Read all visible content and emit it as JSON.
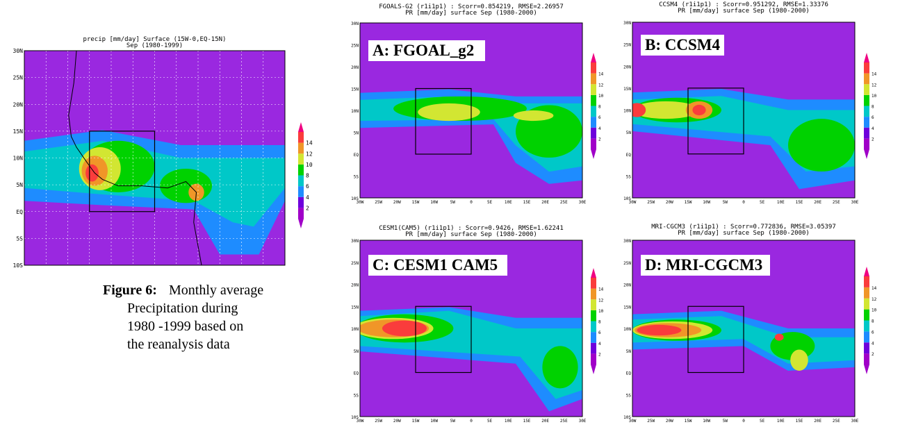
{
  "main_panel": {
    "title_lines": [
      "precip [mm/day] Surface (15W-0,EQ-15N)",
      "Sep (1980-1999)"
    ],
    "yticks": [
      "30N",
      "25N",
      "20N",
      "15N",
      "10N",
      "5N",
      "EQ",
      "5S",
      "10S"
    ],
    "colorbar_ticks": [
      "2",
      "4",
      "6",
      "8",
      "10",
      "12",
      "14"
    ]
  },
  "panels": [
    {
      "label": "A: FGOAL_g2",
      "title_lines": [
        "FGOALS-G2 (r1i1p1) : Scorr=0.854219, RMSE=2.26957",
        "PR [mm/day] surface Sep (1980-2000)"
      ],
      "yticks": [
        "30N",
        "25N",
        "20N",
        "15N",
        "10N",
        "5N",
        "EQ",
        "5S",
        "10S"
      ],
      "xticks": [
        "30W",
        "25W",
        "20W",
        "15W",
        "10W",
        "5W",
        "0",
        "5E",
        "10E",
        "15E",
        "20E",
        "25E",
        "30E"
      ],
      "colorbar_ticks": [
        "2",
        "4",
        "6",
        "8",
        "10",
        "12",
        "14"
      ]
    },
    {
      "label": "B: CCSM4",
      "title_lines": [
        "CCSM4 (r1i1p1) : Scorr=0.951292, RMSE=1.33376",
        "PR [mm/day] surface Sep (1980-2000)"
      ],
      "yticks": [
        "30N",
        "25N",
        "20N",
        "15N",
        "10N",
        "5N",
        "EQ",
        "5S",
        "10S"
      ],
      "xticks": [
        "30W",
        "25W",
        "20W",
        "15W",
        "10W",
        "5W",
        "0",
        "5E",
        "10E",
        "15E",
        "20E",
        "25E",
        "30E"
      ],
      "colorbar_ticks": [
        "2",
        "4",
        "6",
        "8",
        "10",
        "12",
        "14"
      ]
    },
    {
      "label": "C: CESM1 CAM5",
      "title_lines": [
        "CESM1(CAM5) (r1i1p1) : Scorr=0.9426, RMSE=1.62241",
        "PR [mm/day] surface Sep (1980-2000)"
      ],
      "yticks": [
        "30N",
        "25N",
        "20N",
        "15N",
        "10N",
        "5N",
        "EQ",
        "5S",
        "10S"
      ],
      "xticks": [
        "30W",
        "25W",
        "20W",
        "15W",
        "10W",
        "5W",
        "0",
        "5E",
        "10E",
        "15E",
        "20E",
        "25E",
        "30E"
      ],
      "colorbar_ticks": [
        "2",
        "4",
        "6",
        "8",
        "10",
        "12",
        "14"
      ]
    },
    {
      "label": "D: MRI-CGCM3",
      "title_lines": [
        "MRI-CGCM3 (r1i1p1) : Scorr=0.772836, RMSE=3.05397",
        "PR [mm/day] surface Sep (1980-2000)"
      ],
      "yticks": [
        "30N",
        "25N",
        "20N",
        "15N",
        "10N",
        "5N",
        "EQ",
        "5S",
        "10S"
      ],
      "xticks": [
        "30W",
        "25W",
        "20W",
        "15W",
        "10W",
        "5W",
        "0",
        "5E",
        "10E",
        "15E",
        "20E",
        "25E",
        "30E"
      ],
      "colorbar_ticks": [
        "2",
        "4",
        "6",
        "8",
        "10",
        "12",
        "14"
      ]
    }
  ],
  "caption": {
    "label": "Figure 6:",
    "lines": [
      "Monthly average",
      "Precipitation  during",
      "1980 -1999 based on",
      "the reanalysis data"
    ]
  }
}
